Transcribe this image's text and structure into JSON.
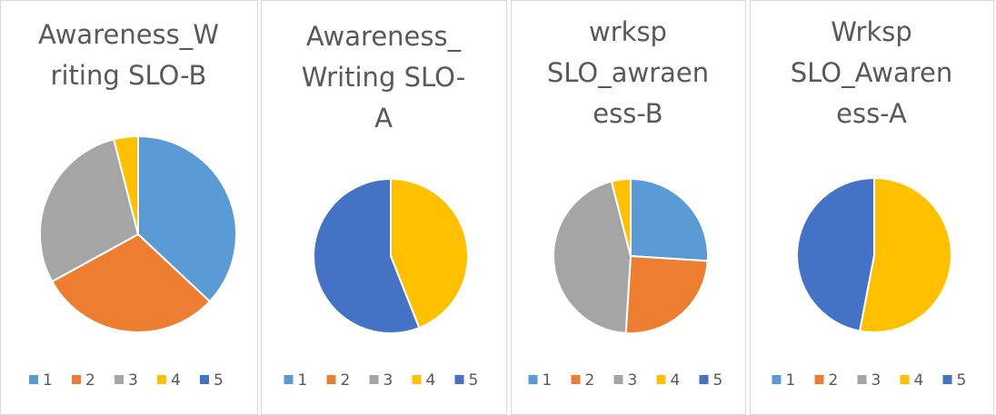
{
  "chart_data": [
    {
      "type": "pie",
      "title": "Awareness_Writing SLO-B",
      "categories": [
        "1",
        "2",
        "3",
        "4",
        "5"
      ],
      "values": [
        37,
        30,
        29,
        4,
        0
      ],
      "colors": [
        "#5b9bd5",
        "#ed7d31",
        "#a5a5a5",
        "#ffc000",
        "#4472c4"
      ]
    },
    {
      "type": "pie",
      "title": "Awareness_Writing SLO-A",
      "categories": [
        "1",
        "2",
        "3",
        "4",
        "5"
      ],
      "values": [
        0,
        0,
        0,
        44,
        56
      ],
      "colors": [
        "#5b9bd5",
        "#ed7d31",
        "#a5a5a5",
        "#ffc000",
        "#4472c4"
      ]
    },
    {
      "type": "pie",
      "title": "wrksp SLO_awraeness-B",
      "categories": [
        "1",
        "2",
        "3",
        "4",
        "5"
      ],
      "values": [
        26,
        25,
        45,
        4,
        0
      ],
      "colors": [
        "#5b9bd5",
        "#ed7d31",
        "#a5a5a5",
        "#ffc000",
        "#4472c4"
      ]
    },
    {
      "type": "pie",
      "title": "Wrksp SLO_Awareness-A",
      "categories": [
        "1",
        "2",
        "3",
        "4",
        "5"
      ],
      "values": [
        0,
        0,
        0,
        53,
        47
      ],
      "colors": [
        "#5b9bd5",
        "#ed7d31",
        "#a5a5a5",
        "#ffc000",
        "#4472c4"
      ]
    }
  ]
}
